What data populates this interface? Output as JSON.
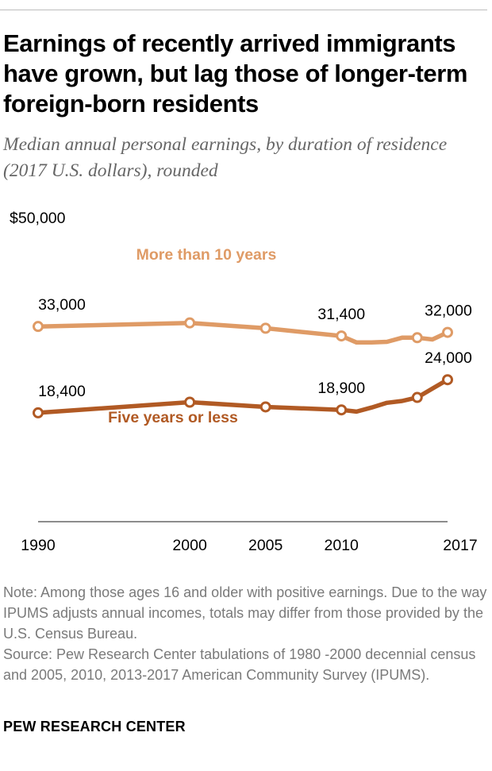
{
  "title": "Earnings of recently arrived immigrants have grown, but lag those of longer-term foreign-born residents",
  "subtitle": "Median annual personal earnings, by duration of residence (2017 U.S. dollars), rounded",
  "note": "Note: Among those ages 16 and older with positive earnings. Due to the way IPUMS adjusts annual incomes, totals may differ from those provided by the U.S. Census Bureau.",
  "source": "Source: Pew Research Center tabulations of 1980 -2000 decennial census and 2005, 2010, 2013-2017 American Community Survey (IPUMS).",
  "brand": "PEW RESEARCH CENTER",
  "chart_data": {
    "type": "line",
    "y_axis_label": "$50,000",
    "ylim": [
      0,
      50000
    ],
    "xlim": [
      1990,
      2017
    ],
    "x_ticks": [
      "1990",
      "2000",
      "2005",
      "2010",
      "2017"
    ],
    "grid": false,
    "series": [
      {
        "name": "More than 10 years",
        "color": "#df9b66",
        "points": [
          {
            "x": 1990,
            "y": 33000,
            "marker": true,
            "label": "33,000"
          },
          {
            "x": 2000,
            "y": 33600,
            "marker": true
          },
          {
            "x": 2005,
            "y": 32700,
            "marker": true
          },
          {
            "x": 2010,
            "y": 31400,
            "marker": true,
            "label": "31,400"
          },
          {
            "x": 2011,
            "y": 30300,
            "marker": false
          },
          {
            "x": 2012,
            "y": 30300,
            "marker": false
          },
          {
            "x": 2013,
            "y": 30400,
            "marker": false
          },
          {
            "x": 2014,
            "y": 31100,
            "marker": false
          },
          {
            "x": 2015,
            "y": 31100,
            "marker": true
          },
          {
            "x": 2016,
            "y": 30800,
            "marker": false
          },
          {
            "x": 2017,
            "y": 32000,
            "marker": true,
            "label": "32,000"
          }
        ]
      },
      {
        "name": "Five years or less",
        "color": "#b15a24",
        "points": [
          {
            "x": 1990,
            "y": 18400,
            "marker": true,
            "label": "18,400"
          },
          {
            "x": 2000,
            "y": 20200,
            "marker": true
          },
          {
            "x": 2005,
            "y": 19400,
            "marker": true
          },
          {
            "x": 2010,
            "y": 18900,
            "marker": true,
            "label": "18,900"
          },
          {
            "x": 2011,
            "y": 18600,
            "marker": false
          },
          {
            "x": 2012,
            "y": 19300,
            "marker": false
          },
          {
            "x": 2013,
            "y": 20100,
            "marker": false
          },
          {
            "x": 2014,
            "y": 20400,
            "marker": false
          },
          {
            "x": 2015,
            "y": 21000,
            "marker": true
          },
          {
            "x": 2016,
            "y": 22500,
            "marker": false
          },
          {
            "x": 2017,
            "y": 24000,
            "marker": true,
            "label": "24,000"
          }
        ]
      }
    ]
  }
}
